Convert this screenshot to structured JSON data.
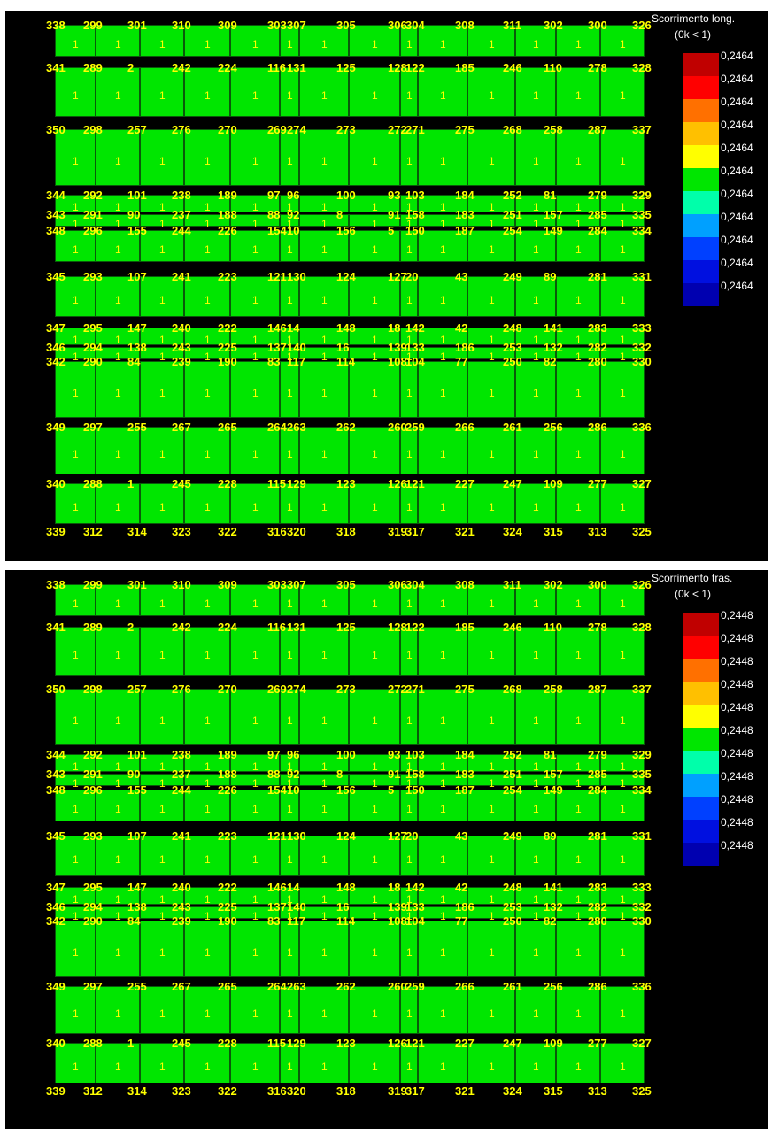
{
  "panels": [
    {
      "id": "top",
      "legend_title": "Scorrimento long.",
      "legend_sub": "(0k < 1)",
      "legend_value": "0,2464"
    },
    {
      "id": "bottom",
      "legend_title": "Scorrimento tras.",
      "legend_sub": "(0k < 1)",
      "legend_value": "0,2448"
    }
  ],
  "legend_colors": [
    "#c00000",
    "#ff0000",
    "#ff7000",
    "#ffc000",
    "#ffff00",
    "#00e600",
    "#00ffaa",
    "#00a0ff",
    "#0040ff",
    "#0010e0",
    "#0000b0"
  ],
  "rows": [
    [
      "338",
      "299",
      "301",
      "310",
      "309",
      "303",
      "307",
      "305",
      "306",
      "304",
      "308",
      "311",
      "302",
      "300",
      "326"
    ],
    [
      "341",
      "289",
      "2",
      "242",
      "224",
      "116",
      "131",
      "125",
      "128",
      "122",
      "185",
      "246",
      "110",
      "278",
      "328"
    ],
    [
      "350",
      "298",
      "257",
      "276",
      "270",
      "269",
      "274",
      "273",
      "272",
      "271",
      "275",
      "268",
      "258",
      "287",
      "337"
    ],
    [
      "344",
      "292",
      "101",
      "238",
      "189",
      "97",
      "96",
      "100",
      "93",
      "103",
      "184",
      "252",
      "81",
      "279",
      "329"
    ],
    [
      "343",
      "291",
      "90",
      "237",
      "188",
      "88",
      "92",
      "8",
      "91",
      "158",
      "183",
      "251",
      "157",
      "285",
      "335"
    ],
    [
      "348",
      "296",
      "155",
      "244",
      "226",
      "154",
      "10",
      "156",
      "5",
      "150",
      "187",
      "254",
      "149",
      "284",
      "334"
    ],
    [
      "345",
      "293",
      "107",
      "241",
      "223",
      "121",
      "130",
      "124",
      "127",
      "20",
      "43",
      "249",
      "89",
      "281",
      "331"
    ],
    [
      "347",
      "295",
      "147",
      "240",
      "222",
      "146",
      "14",
      "148",
      "18",
      "142",
      "42",
      "248",
      "141",
      "283",
      "333"
    ],
    [
      "346",
      "294",
      "138",
      "243",
      "225",
      "137",
      "140",
      "16",
      "139",
      "133",
      "186",
      "253",
      "132",
      "282",
      "332"
    ],
    [
      "342",
      "290",
      "84",
      "239",
      "190",
      "83",
      "117",
      "114",
      "108",
      "104",
      "77",
      "250",
      "82",
      "280",
      "330"
    ],
    [
      "349",
      "297",
      "255",
      "267",
      "265",
      "264",
      "263",
      "262",
      "260",
      "259",
      "266",
      "261",
      "256",
      "286",
      "336"
    ],
    [
      "340",
      "288",
      "1",
      "245",
      "228",
      "115",
      "129",
      "123",
      "126",
      "121",
      "227",
      "247",
      "109",
      "277",
      "327"
    ],
    [
      "339",
      "312",
      "314",
      "323",
      "322",
      "316",
      "320",
      "318",
      "319",
      "317",
      "321",
      "324",
      "315",
      "313",
      "325"
    ]
  ],
  "cell_value": "1"
}
